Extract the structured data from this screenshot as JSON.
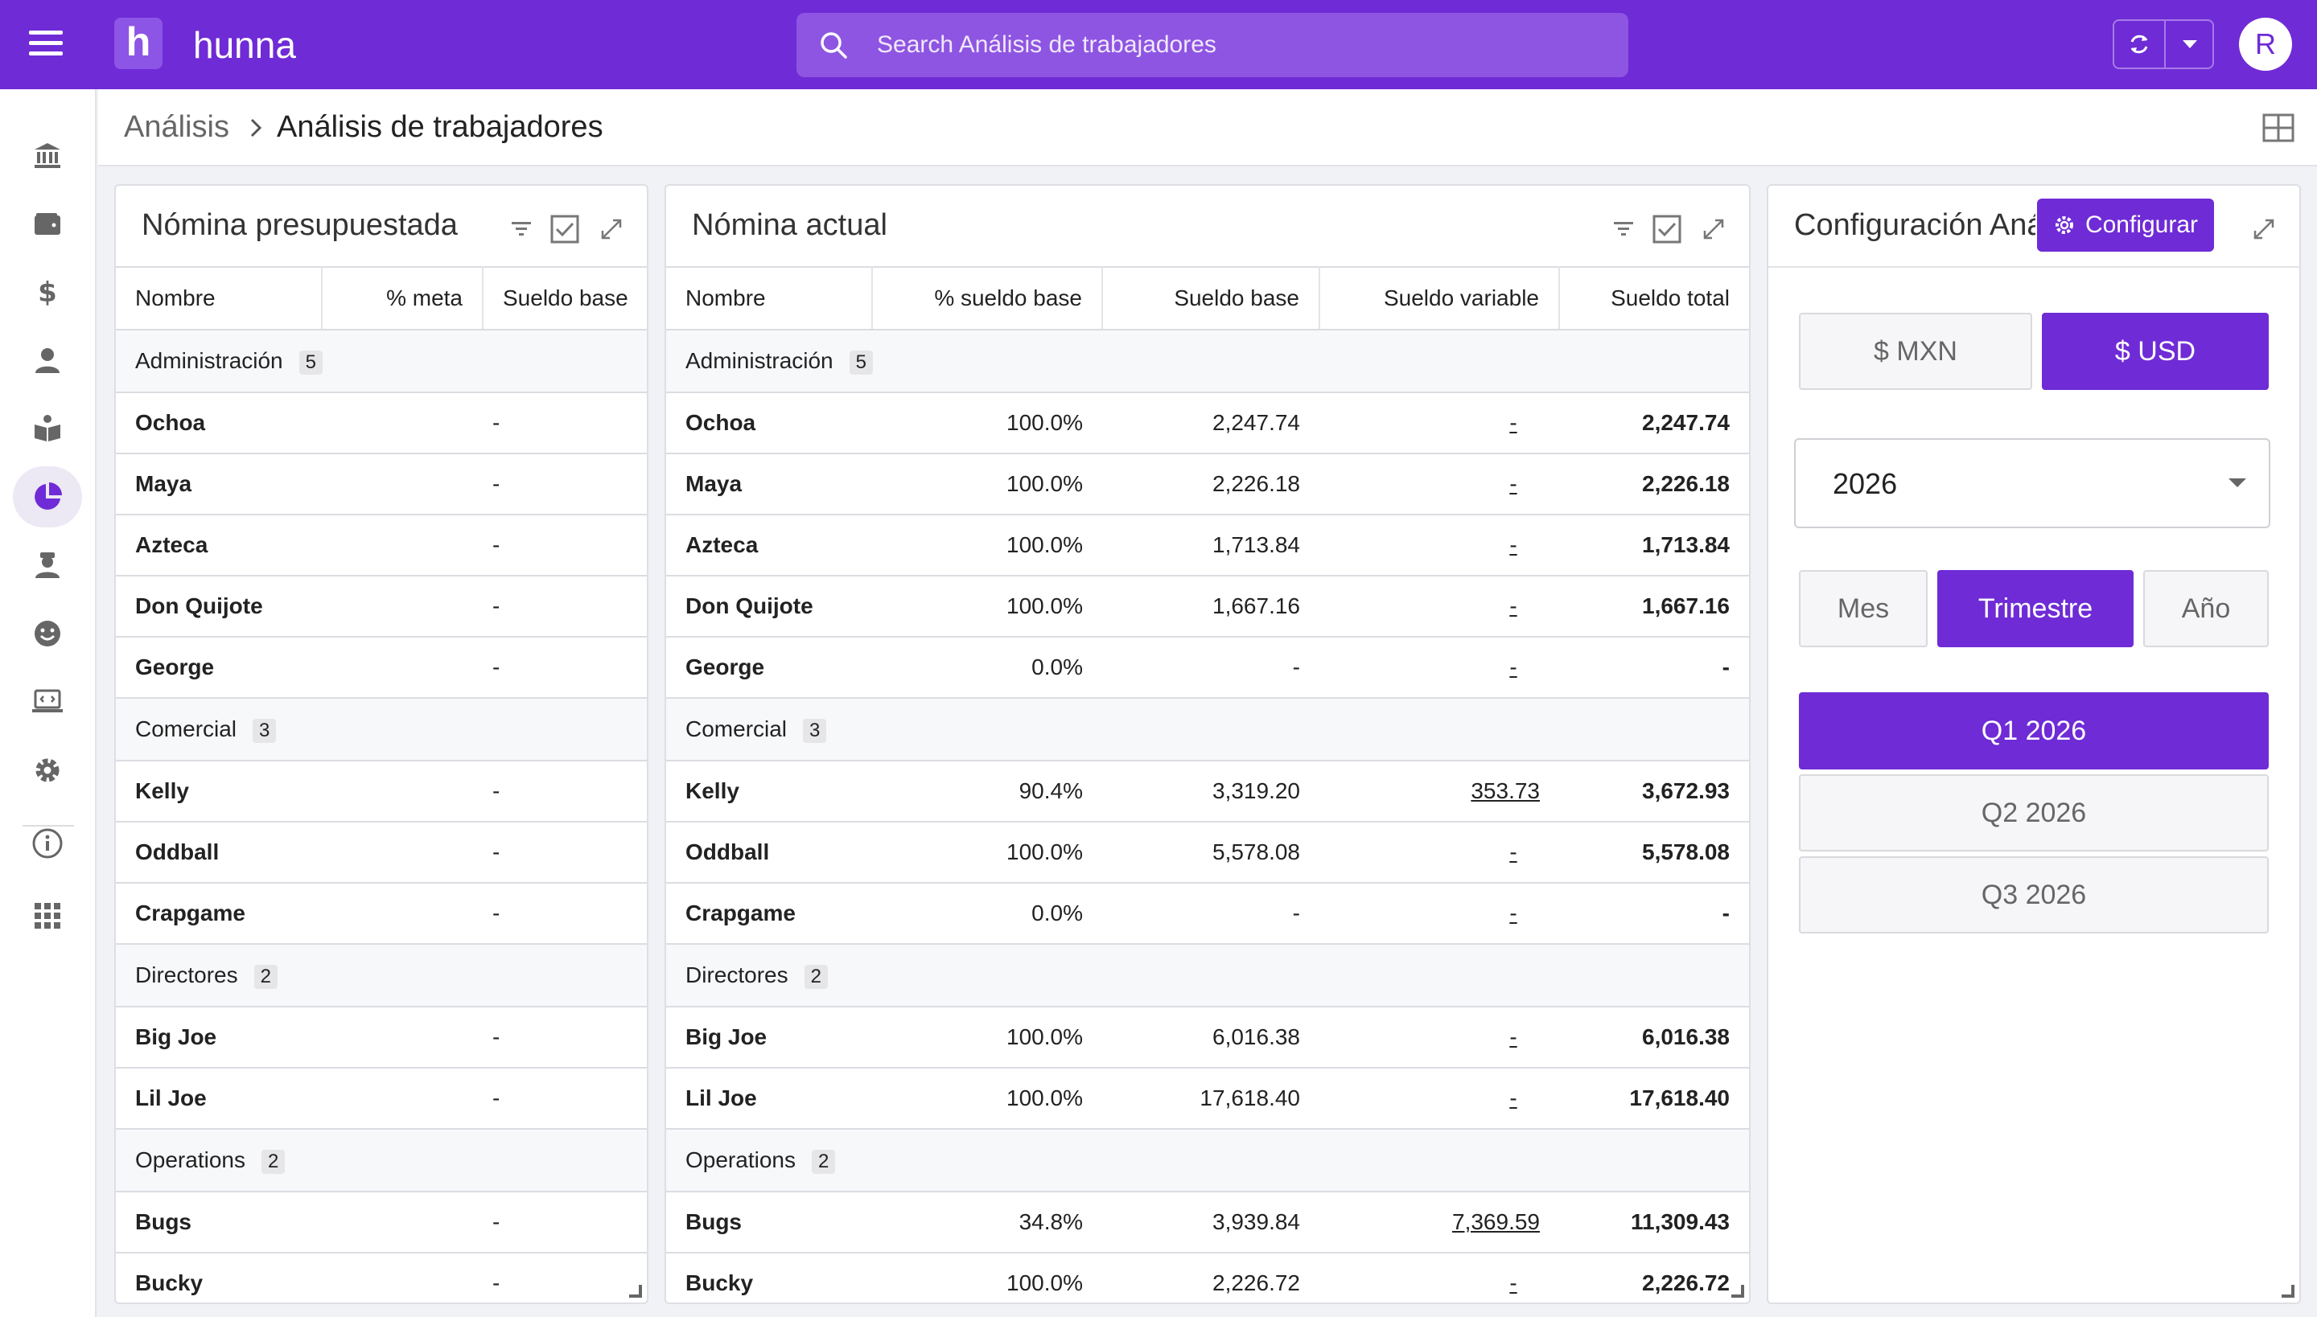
{
  "app": {
    "brand_letter": "h",
    "brand": "hunna",
    "avatar_letter": "R"
  },
  "search": {
    "placeholder": "Search Análisis de trabajadores"
  },
  "breadcrumb": {
    "parent": "Análisis",
    "current": "Análisis de trabajadores"
  },
  "sidebar": {
    "items": [
      "bank-icon",
      "wallet-icon",
      "dollar-icon",
      "person-icon",
      "books-icon",
      "pie-chart-icon",
      "worker-icon",
      "smile-icon",
      "laptop-code-icon",
      "gear-icon",
      "info-icon",
      "apps-grid-icon"
    ],
    "active": "pie-chart-icon"
  },
  "budget_panel": {
    "title": "Nómina presupuestada",
    "columns": [
      "Nombre",
      "% meta",
      "Sueldo base"
    ],
    "rows": [
      {
        "type": "group",
        "name": "Administración",
        "count": "5"
      },
      {
        "type": "row",
        "name": "Ochoa",
        "value": "-"
      },
      {
        "type": "row",
        "name": "Maya",
        "value": "-"
      },
      {
        "type": "row",
        "name": "Azteca",
        "value": "-"
      },
      {
        "type": "row",
        "name": "Don Quijote",
        "value": "-"
      },
      {
        "type": "row",
        "name": "George",
        "value": "-"
      },
      {
        "type": "group",
        "name": "Comercial",
        "count": "3"
      },
      {
        "type": "row",
        "name": "Kelly",
        "value": "-"
      },
      {
        "type": "row",
        "name": "Oddball",
        "value": "-"
      },
      {
        "type": "row",
        "name": "Crapgame",
        "value": "-"
      },
      {
        "type": "group",
        "name": "Directores",
        "count": "2"
      },
      {
        "type": "row",
        "name": "Big Joe",
        "value": "-"
      },
      {
        "type": "row",
        "name": "Lil Joe",
        "value": "-"
      },
      {
        "type": "group",
        "name": "Operations",
        "count": "2"
      },
      {
        "type": "row",
        "name": "Bugs",
        "value": "-"
      },
      {
        "type": "row",
        "name": "Bucky",
        "value": "-"
      }
    ]
  },
  "actual_panel": {
    "title": "Nómina actual",
    "columns": [
      "Nombre",
      "% sueldo base",
      "Sueldo base",
      "Sueldo variable",
      "Sueldo total"
    ],
    "rows": [
      {
        "type": "group",
        "name": "Administración",
        "count": "5"
      },
      {
        "type": "row",
        "name": "Ochoa",
        "pct": "100.0%",
        "base": "2,247.74",
        "variable": "-",
        "total": "2,247.74"
      },
      {
        "type": "row",
        "name": "Maya",
        "pct": "100.0%",
        "base": "2,226.18",
        "variable": "-",
        "total": "2,226.18"
      },
      {
        "type": "row",
        "name": "Azteca",
        "pct": "100.0%",
        "base": "1,713.84",
        "variable": "-",
        "total": "1,713.84"
      },
      {
        "type": "row",
        "name": "Don Quijote",
        "pct": "100.0%",
        "base": "1,667.16",
        "variable": "-",
        "total": "1,667.16"
      },
      {
        "type": "row",
        "name": "George",
        "pct": "0.0%",
        "base": "-",
        "variable": "-",
        "total": "-"
      },
      {
        "type": "group",
        "name": "Comercial",
        "count": "3"
      },
      {
        "type": "row",
        "name": "Kelly",
        "pct": "90.4%",
        "base": "3,319.20",
        "variable": "353.73",
        "total": "3,672.93"
      },
      {
        "type": "row",
        "name": "Oddball",
        "pct": "100.0%",
        "base": "5,578.08",
        "variable": "-",
        "total": "5,578.08"
      },
      {
        "type": "row",
        "name": "Crapgame",
        "pct": "0.0%",
        "base": "-",
        "variable": "-",
        "total": "-"
      },
      {
        "type": "group",
        "name": "Directores",
        "count": "2"
      },
      {
        "type": "row",
        "name": "Big Joe",
        "pct": "100.0%",
        "base": "6,016.38",
        "variable": "-",
        "total": "6,016.38"
      },
      {
        "type": "row",
        "name": "Lil Joe",
        "pct": "100.0%",
        "base": "17,618.40",
        "variable": "-",
        "total": "17,618.40"
      },
      {
        "type": "group",
        "name": "Operations",
        "count": "2"
      },
      {
        "type": "row",
        "name": "Bugs",
        "pct": "34.8%",
        "base": "3,939.84",
        "variable": "7,369.59",
        "total": "11,309.43"
      },
      {
        "type": "row",
        "name": "Bucky",
        "pct": "100.0%",
        "base": "2,226.72",
        "variable": "-",
        "total": "2,226.72"
      }
    ]
  },
  "config_panel": {
    "title": "Configuración Aná",
    "configure_label": "Configurar",
    "currency": {
      "options": [
        "$ MXN",
        "$ USD"
      ],
      "selected": "$ USD"
    },
    "year": "2026",
    "period": {
      "options": [
        "Mes",
        "Trimestre",
        "Año"
      ],
      "selected": "Trimestre"
    },
    "quarters": {
      "options": [
        "Q1 2026",
        "Q2 2026",
        "Q3 2026"
      ],
      "selected": "Q1 2026"
    }
  },
  "colors": {
    "primary": "#6f2bd6",
    "search_bg": "#8e55e2"
  }
}
